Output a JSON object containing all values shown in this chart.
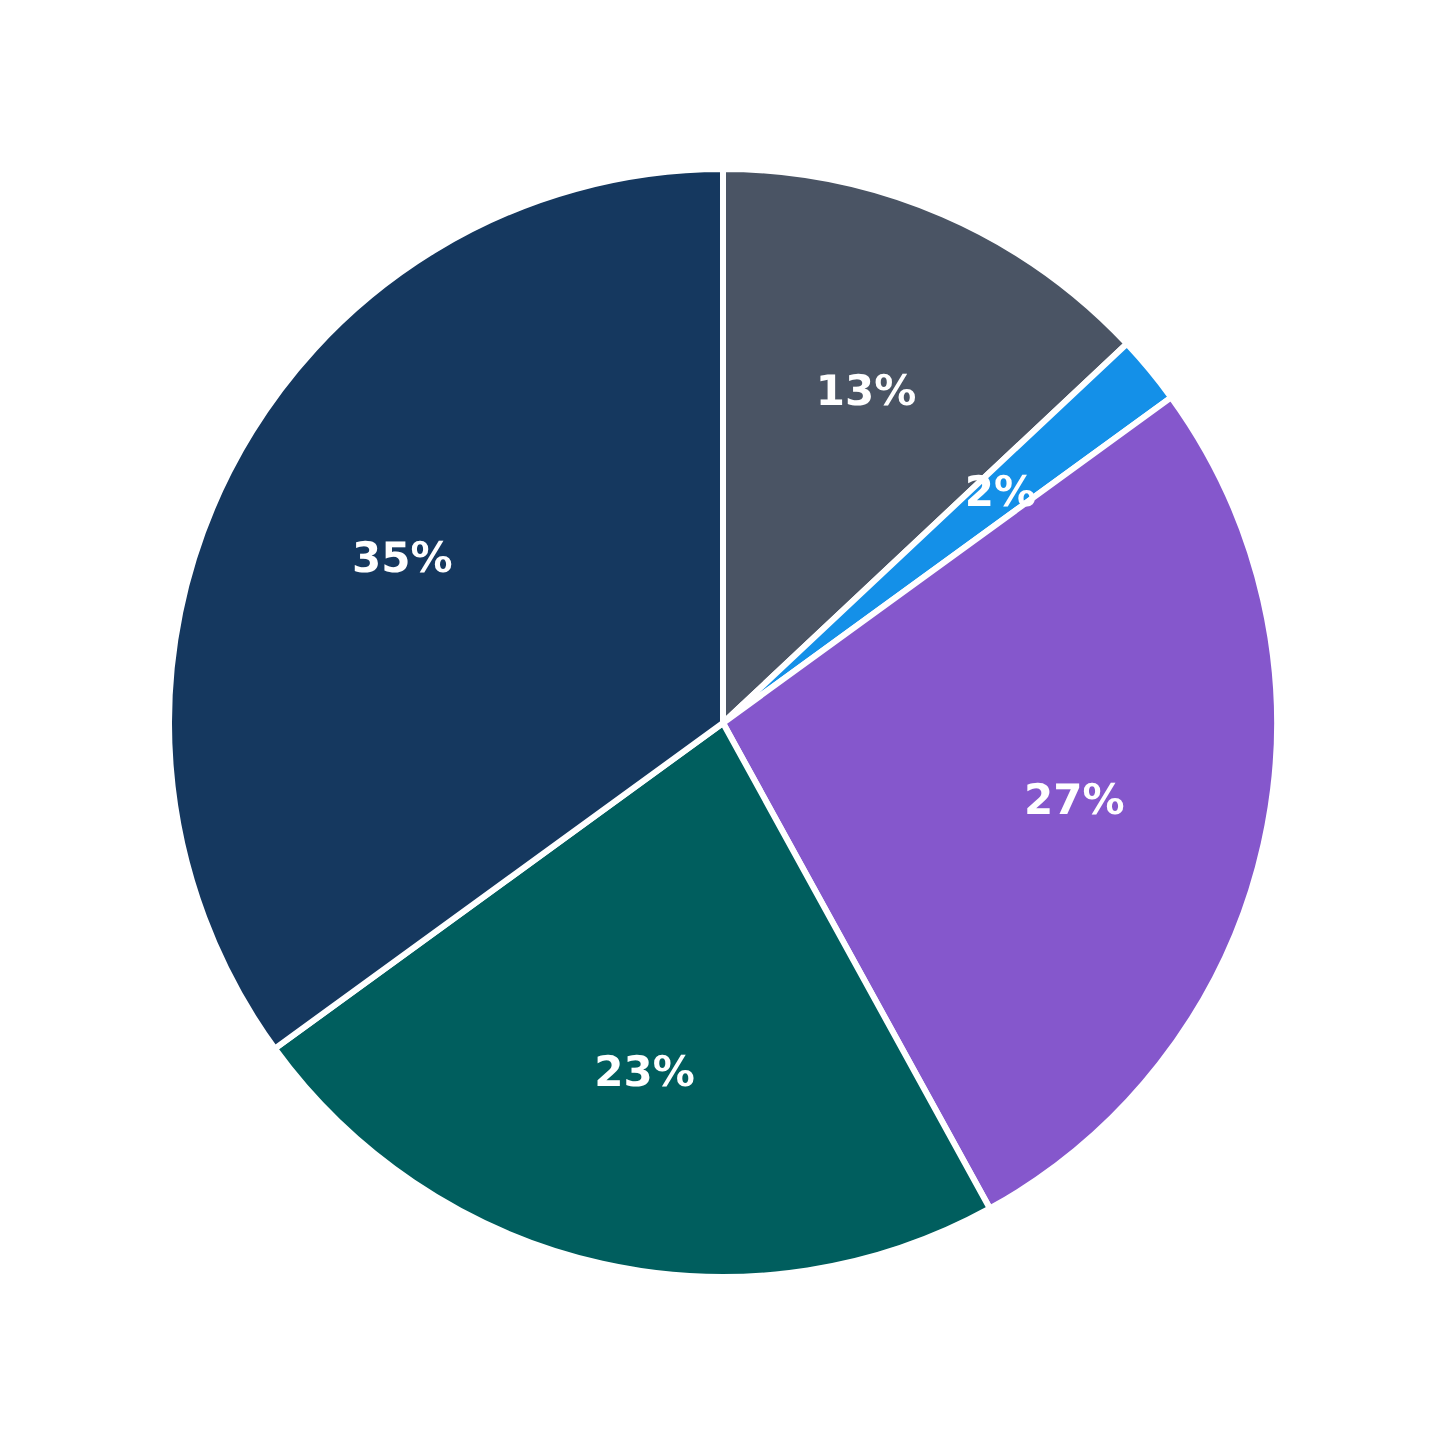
{
  "chart_data": {
    "type": "pie",
    "categories": [
      null,
      null,
      null,
      null,
      null
    ],
    "values": [
      13,
      2,
      27,
      23,
      35
    ],
    "colors": [
      "#4a5464",
      "#1490e8",
      "#8557cc",
      "#005e5e",
      "#15385f"
    ],
    "value_labels": [
      "13%",
      "2%",
      "27%",
      "23%",
      "35%"
    ]
  }
}
